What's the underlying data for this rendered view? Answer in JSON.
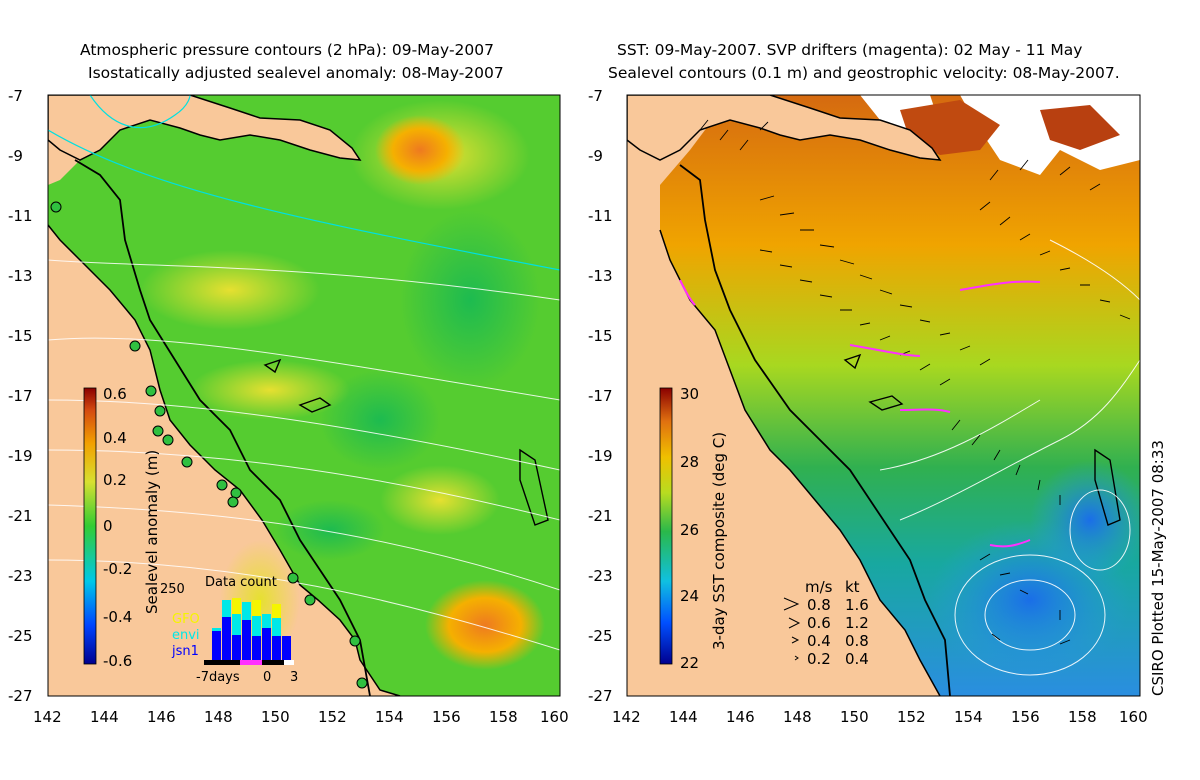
{
  "left_panel": {
    "title_line1": "Atmospheric pressure contours (2 hPa): 09-May-2007",
    "title_line2": "Isostatically adjusted sealevel anomaly: 08-May-2007",
    "colorbar_label": "Sealevel anomaly (m)",
    "colorbar_ticks": [
      "0.6",
      "0.4",
      "0.2",
      "0",
      "-0.2",
      "-0.4",
      "-0.6"
    ],
    "inset": {
      "title": "Data count",
      "y_max_label": "250",
      "legend": [
        {
          "label": "GFO",
          "color": "#f5f500"
        },
        {
          "label": "envi",
          "color": "#00e8e8"
        },
        {
          "label": "jsn1",
          "color": "#0000ff"
        }
      ],
      "x_labels": [
        "-7days",
        "0",
        "3"
      ]
    }
  },
  "right_panel": {
    "title_line1": "SST: 09-May-2007. SVP drifters (magenta): 02 May - 11 May",
    "title_line2": "Sealevel contours (0.1 m) and geostrophic velocity: 08-May-2007.",
    "colorbar_label": "3-day SST composite (deg C)",
    "colorbar_ticks": [
      "30",
      "28",
      "26",
      "24",
      "22"
    ],
    "velocity_legend": {
      "header_ms": "m/s",
      "header_kt": "kt",
      "rows": [
        {
          "ms": "0.8",
          "kt": "1.6"
        },
        {
          "ms": "0.6",
          "kt": "1.2"
        },
        {
          "ms": "0.4",
          "kt": "0.8"
        },
        {
          "ms": "0.2",
          "kt": "0.4"
        }
      ]
    }
  },
  "axes": {
    "lat_labels": [
      "-7",
      "-9",
      "-11",
      "-13",
      "-15",
      "-17",
      "-19",
      "-21",
      "-23",
      "-25",
      "-27"
    ],
    "lon_labels": [
      "142",
      "144",
      "146",
      "148",
      "150",
      "152",
      "154",
      "156",
      "158",
      "160"
    ]
  },
  "credit": "CSIRO Plotted 15-May-2007 08:33",
  "colors": {
    "land": "#f9c89a",
    "sla_zero": "#33cc33",
    "sst_warm": "#d56a10",
    "sst_cool": "#2e9ee0"
  }
}
